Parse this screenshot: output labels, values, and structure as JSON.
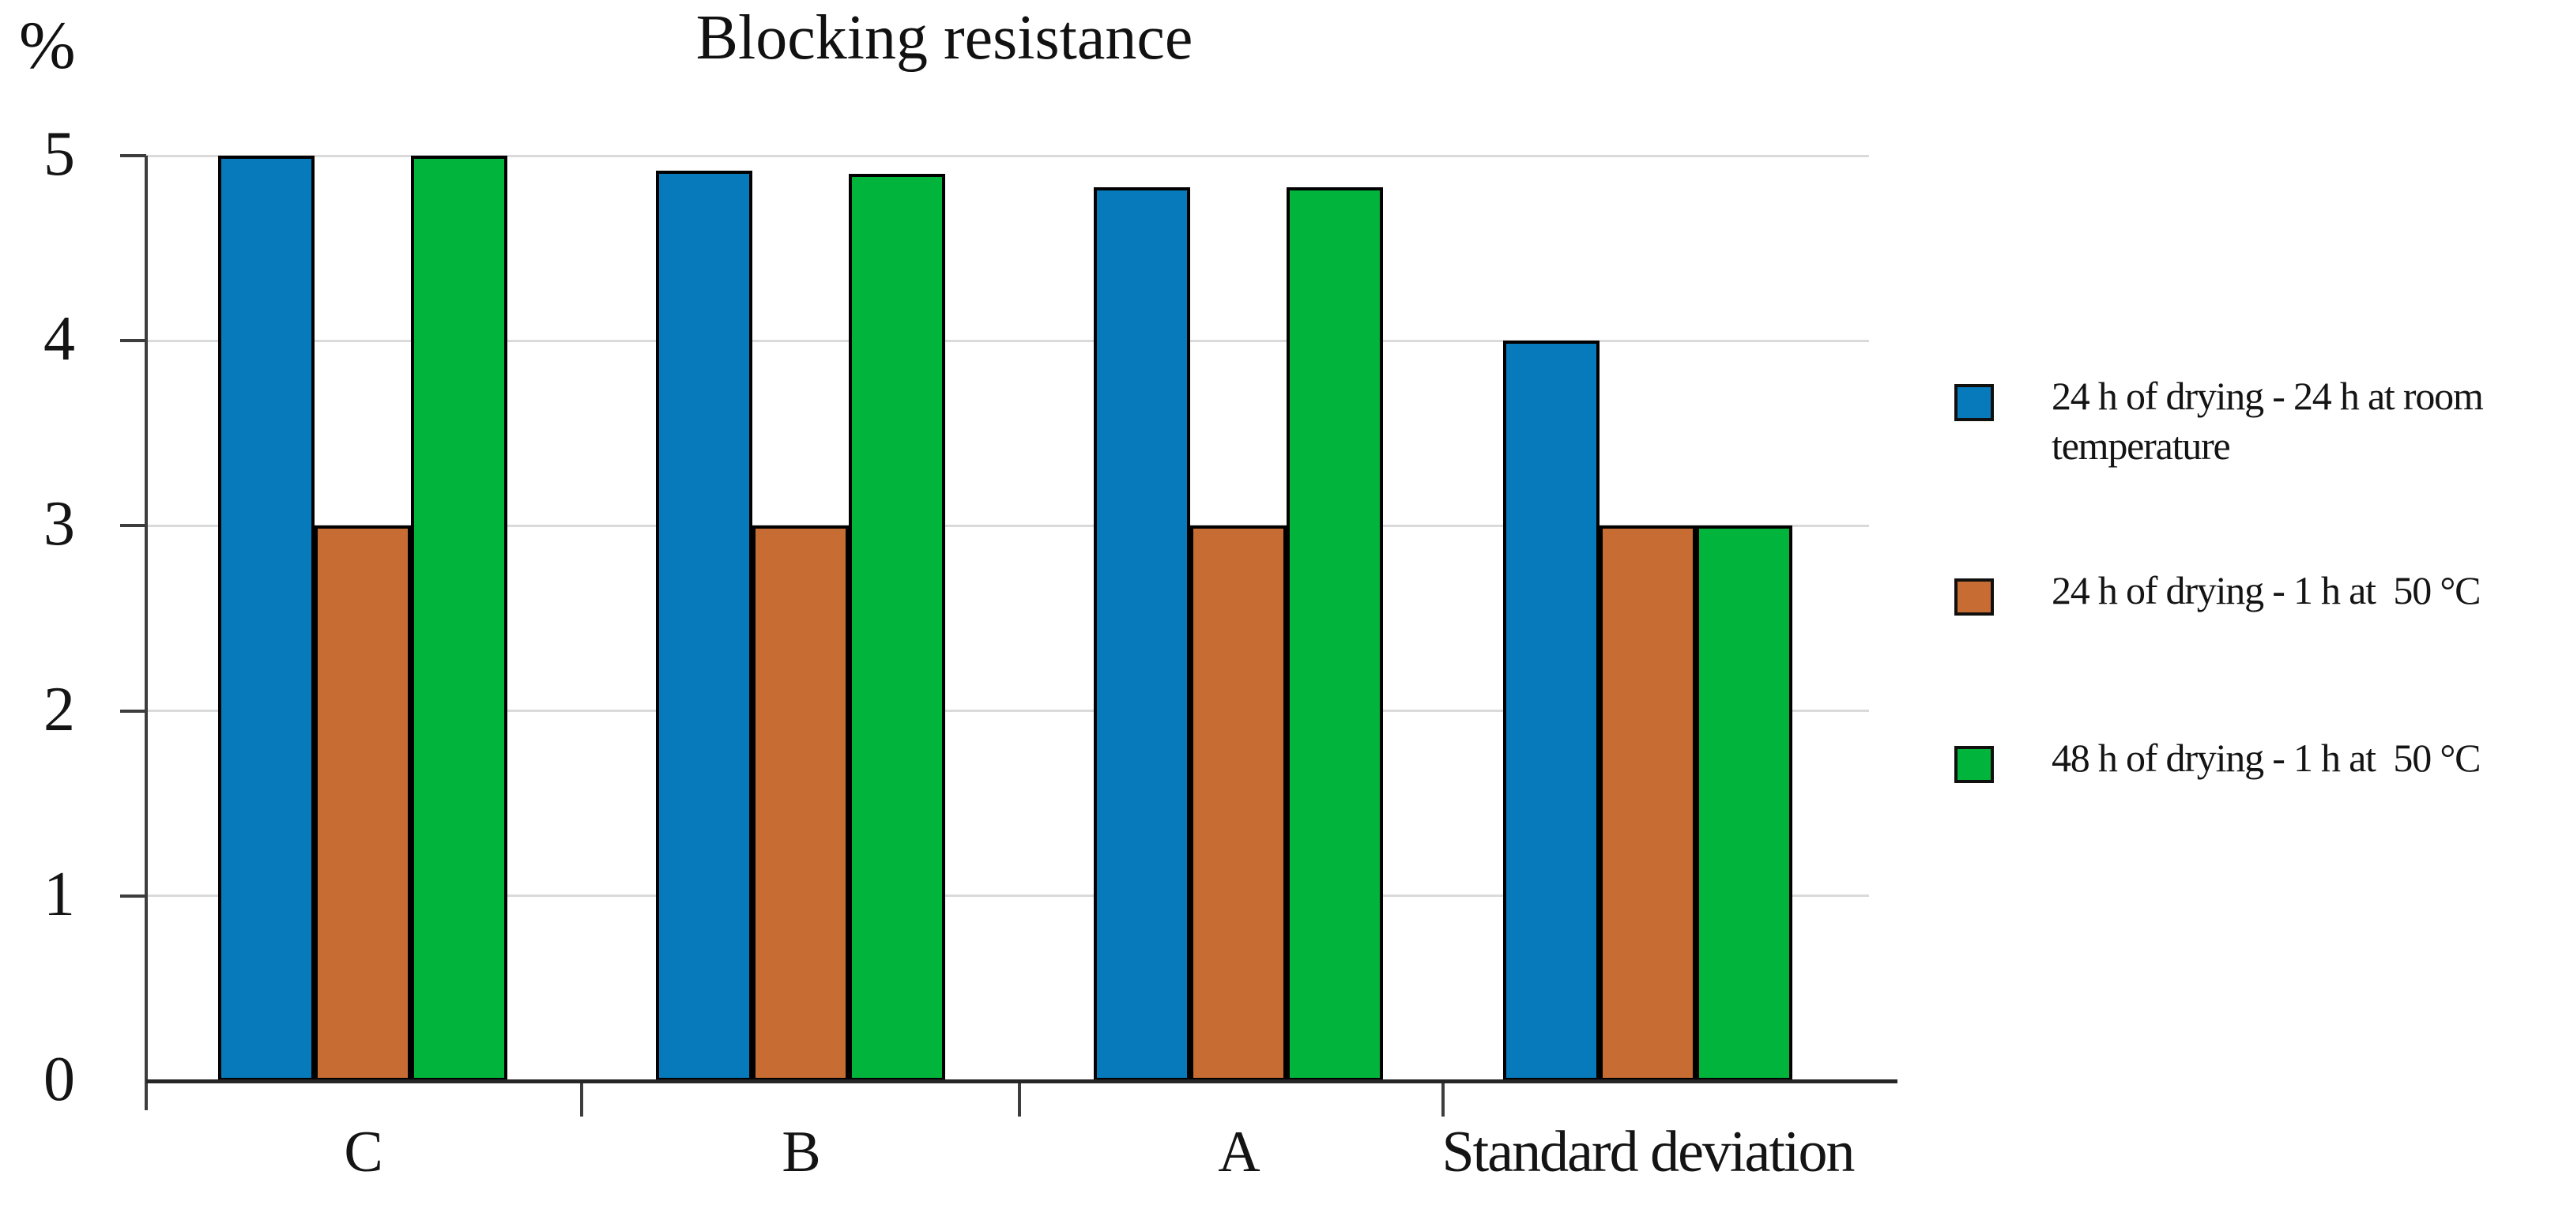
{
  "chart_data": {
    "type": "bar",
    "title": "Blocking resistance",
    "ylabel": "%",
    "xlabel": "",
    "categories": [
      "C",
      "B",
      "A",
      "Standard deviation"
    ],
    "y_ticks": [
      "0",
      "1",
      "2",
      "3",
      "4",
      "5"
    ],
    "ylim": [
      0,
      5
    ],
    "grid": true,
    "legend_position": "right",
    "series": [
      {
        "name": "24 h of drying - 24 h at room temperature",
        "color": "#077abc",
        "values": [
          5,
          4.92,
          4.83,
          4
        ]
      },
      {
        "name": "24 h of drying - 1 h at  50 °C",
        "color": "#c76c32",
        "values": [
          3,
          3,
          3,
          3
        ]
      },
      {
        "name": "48 h of drying - 1 h at  50 °C",
        "color": "#00b43c",
        "values": [
          5,
          4.9,
          4.83,
          3
        ]
      }
    ],
    "colors": {
      "grid_line": "#dadada",
      "axis_line": "#3d3d3d",
      "baseline": "#262626",
      "bar_border": "#000000",
      "text": "#141414"
    }
  }
}
